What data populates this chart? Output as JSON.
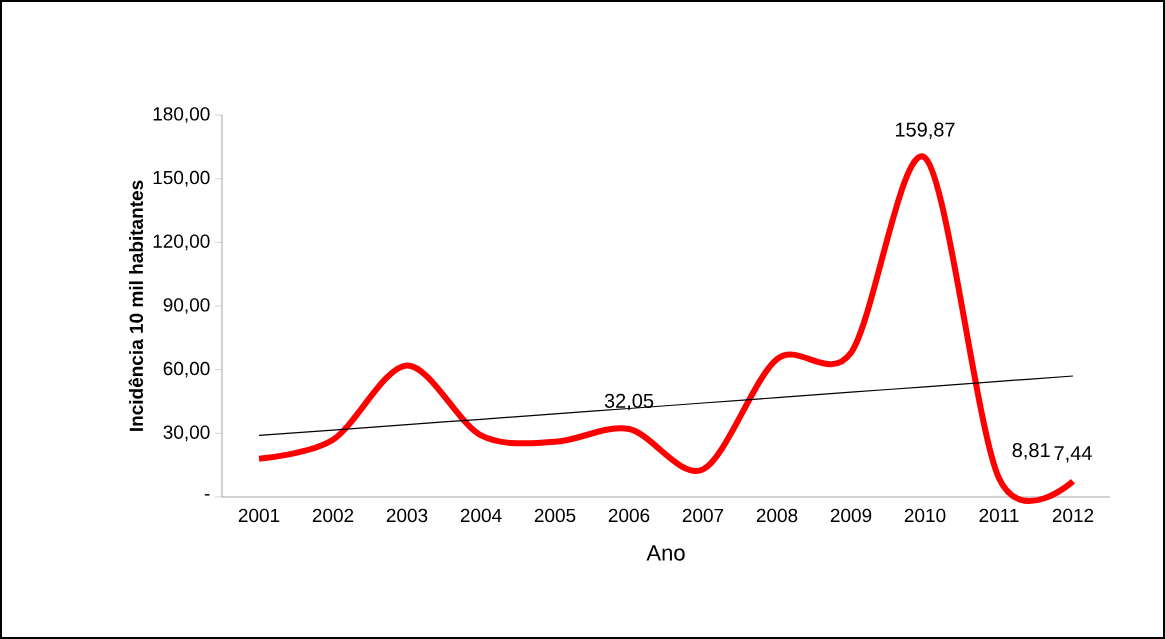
{
  "chart_data": {
    "type": "line",
    "xlabel": "Ano",
    "ylabel": "Incidência 10 mil habitantes",
    "categories": [
      "2001",
      "2002",
      "2003",
      "2004",
      "2005",
      "2006",
      "2007",
      "2008",
      "2009",
      "2010",
      "2011",
      "2012"
    ],
    "series": [
      {
        "color": "#ff0000",
        "values": [
          18,
          27,
          62,
          29,
          26,
          32.05,
          13,
          65,
          68,
          159.87,
          8.81,
          7.44
        ],
        "value_labels": [
          null,
          null,
          null,
          null,
          null,
          "32,05",
          null,
          null,
          null,
          "159,87",
          "8,81",
          "7,44"
        ]
      },
      {
        "color": "#000000",
        "values": [
          29.0,
          31.5,
          34.1,
          36.6,
          39.2,
          41.7,
          44.3,
          46.8,
          49.4,
          51.9,
          54.5,
          57.0
        ]
      }
    ],
    "ylim": [
      0,
      180
    ],
    "yticks": [
      {
        "value": 0,
        "label": "-"
      },
      {
        "value": 30,
        "label": "30,00"
      },
      {
        "value": 60,
        "label": "60,00"
      },
      {
        "value": 90,
        "label": "90,00"
      },
      {
        "value": 120,
        "label": "120,00"
      },
      {
        "value": 150,
        "label": "150,00"
      },
      {
        "value": 180,
        "label": "180,00"
      }
    ],
    "grid": false
  }
}
